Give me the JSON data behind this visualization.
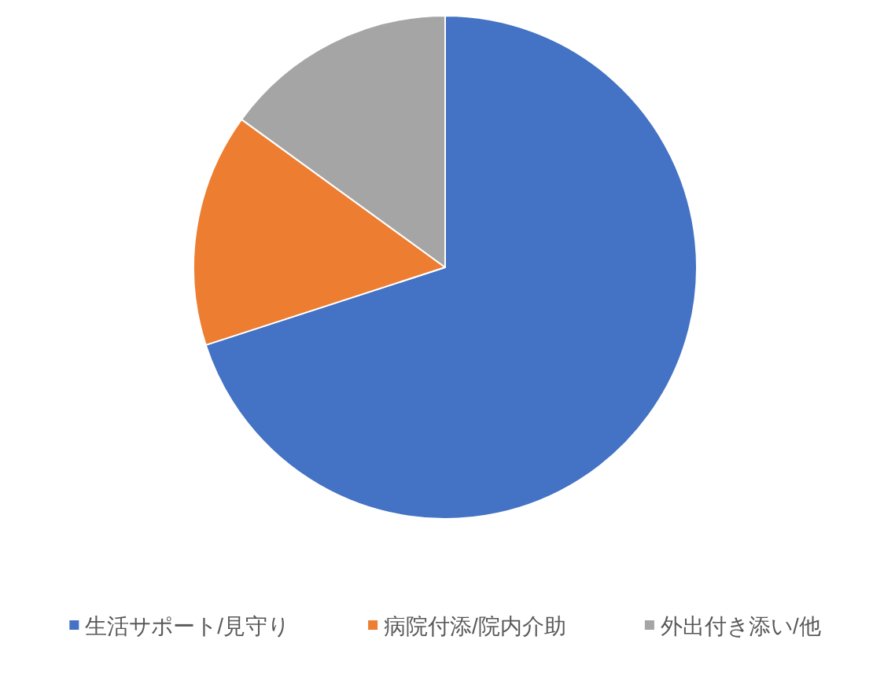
{
  "chart_data": {
    "type": "pie",
    "categories": [
      "生活サポート/見守り",
      "病院付添/院内介助",
      "外出付き添い/他"
    ],
    "values": [
      70,
      15,
      15
    ],
    "colors": [
      "#4472c4",
      "#ed7d31",
      "#a5a5a5"
    ],
    "legend": "bottom"
  }
}
